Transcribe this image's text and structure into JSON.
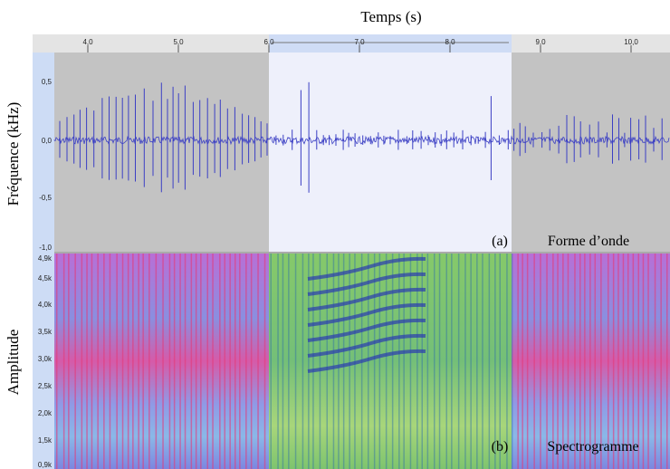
{
  "title": "Temps (s)",
  "time_ruler": {
    "ticks": [
      "4,0",
      "5,0",
      "6,0",
      "7,0",
      "8,0",
      "9,0",
      "10,0"
    ]
  },
  "waveform": {
    "axis_label": "Fréquence (kHz)",
    "yticks": [
      "0,5",
      "0,0",
      "-0,5",
      "-1,0"
    ],
    "panel_label": "(a)",
    "caption": "Forme d’onde"
  },
  "spectrogram": {
    "axis_label": "Amplitude",
    "yticks": [
      "4,9k",
      "4,5k",
      "4,0k",
      "3,5k",
      "3,0k",
      "2,5k",
      "2,0k",
      "1,5k",
      "0,9k"
    ],
    "panel_label": "(b)",
    "caption": "Spectrogramme"
  }
}
